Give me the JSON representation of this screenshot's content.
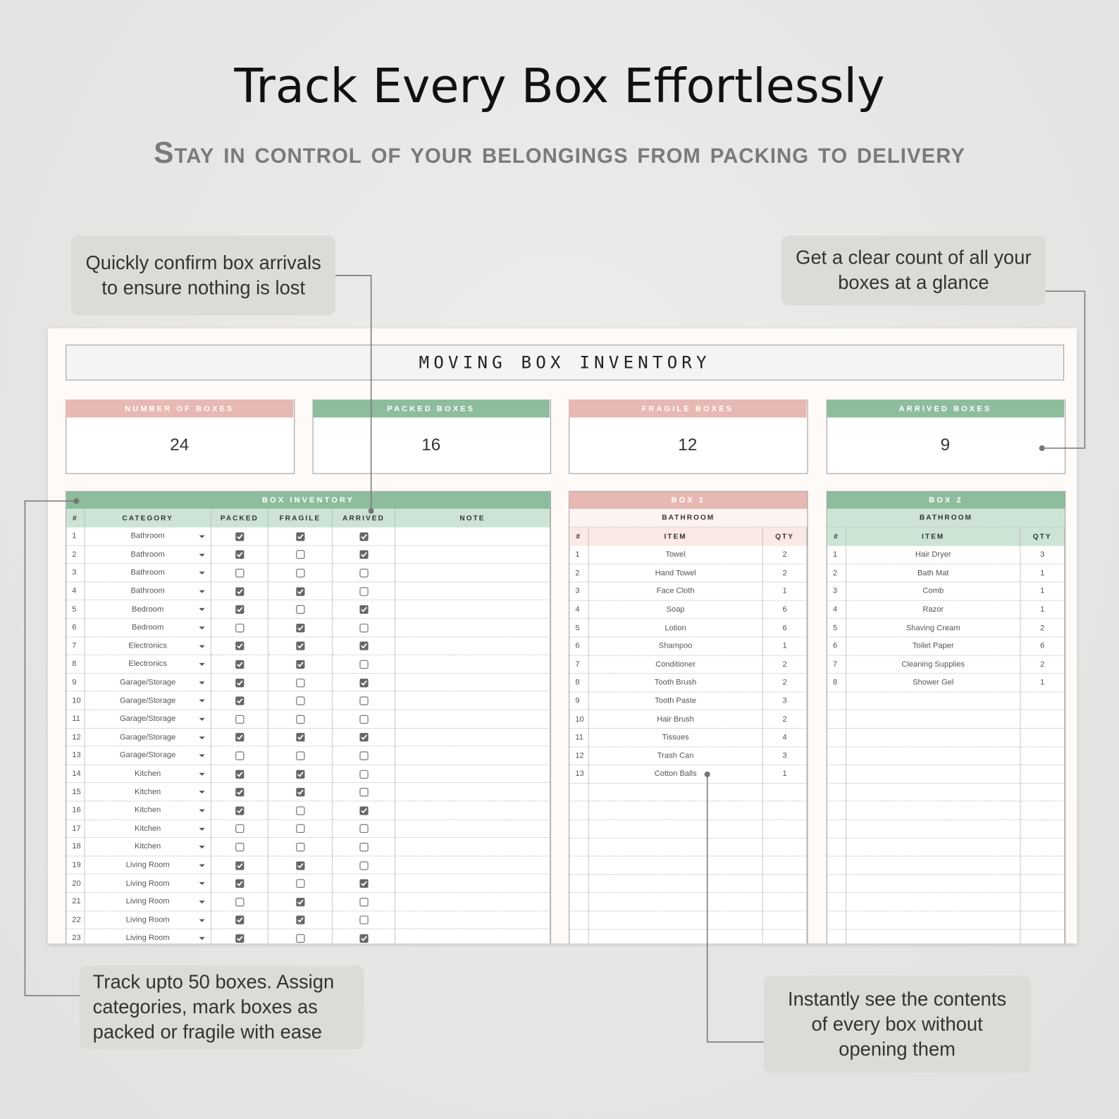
{
  "header": {
    "title": "Track Every Box Effortlessly",
    "subtitle": "Stay in control of your belongings from packing to delivery"
  },
  "callouts": [
    {
      "lines": [
        "Quickly confirm box arrivals",
        "to ensure nothing is lost"
      ]
    },
    {
      "lines": [
        "Get a clear count of all your",
        "boxes at a glance"
      ]
    },
    {
      "lines": [
        "Track upto 50 boxes. Assign",
        "categories, mark boxes as",
        "packed or fragile with ease"
      ]
    },
    {
      "lines": [
        "Instantly see the contents",
        "of every box without",
        "opening them"
      ]
    }
  ],
  "sheet": {
    "title": "MOVING BOX INVENTORY",
    "cards": [
      {
        "label": "NUMBER OF BOXES",
        "value": "24"
      },
      {
        "label": "PACKED BOXES",
        "value": "16"
      },
      {
        "label": "FRAGILE BOXES",
        "value": "12"
      },
      {
        "label": "ARRIVED BOXES",
        "value": "9"
      }
    ],
    "inventory": {
      "title": "BOX INVENTORY",
      "columns": [
        "#",
        "CATEGORY",
        "PACKED",
        "FRAGILE",
        "ARRIVED",
        "NOTE"
      ],
      "rows": [
        [
          1,
          "Bathroom",
          true,
          true,
          true
        ],
        [
          2,
          "Bathroom",
          true,
          false,
          true
        ],
        [
          3,
          "Bathroom",
          false,
          false,
          false
        ],
        [
          4,
          "Bathroom",
          true,
          true,
          false
        ],
        [
          5,
          "Bedroom",
          true,
          false,
          true
        ],
        [
          6,
          "Bedroom",
          false,
          true,
          false
        ],
        [
          7,
          "Electronics",
          true,
          true,
          true
        ],
        [
          8,
          "Electronics",
          true,
          true,
          false
        ],
        [
          9,
          "Garage/Storage",
          true,
          false,
          true
        ],
        [
          10,
          "Garage/Storage",
          true,
          false,
          false
        ],
        [
          11,
          "Garage/Storage",
          false,
          false,
          false
        ],
        [
          12,
          "Garage/Storage",
          true,
          true,
          true
        ],
        [
          13,
          "Garage/Storage",
          false,
          false,
          false
        ],
        [
          14,
          "Kitchen",
          true,
          true,
          false
        ],
        [
          15,
          "Kitchen",
          true,
          true,
          false
        ],
        [
          16,
          "Kitchen",
          true,
          false,
          true
        ],
        [
          17,
          "Kitchen",
          false,
          false,
          false
        ],
        [
          18,
          "Kitchen",
          false,
          false,
          false
        ],
        [
          19,
          "Living Room",
          true,
          true,
          false
        ],
        [
          20,
          "Living Room",
          true,
          false,
          true
        ],
        [
          21,
          "Living Room",
          false,
          true,
          false
        ],
        [
          22,
          "Living Room",
          true,
          true,
          false
        ],
        [
          23,
          "Living Room",
          true,
          false,
          true
        ]
      ]
    },
    "boxes": [
      {
        "title": "BOX 1",
        "room": "BATHROOM",
        "columns": [
          "#",
          "ITEM",
          "QTY"
        ],
        "rows": [
          [
            1,
            "Towel",
            2
          ],
          [
            2,
            "Hand Towel",
            2
          ],
          [
            3,
            "Face Cloth",
            1
          ],
          [
            4,
            "Soap",
            6
          ],
          [
            5,
            "Lotion",
            6
          ],
          [
            6,
            "Shampoo",
            1
          ],
          [
            7,
            "Conditioner",
            2
          ],
          [
            8,
            "Tooth Brush",
            2
          ],
          [
            9,
            "Tooth Paste",
            3
          ],
          [
            10,
            "Hair Brush",
            2
          ],
          [
            11,
            "Tissues",
            4
          ],
          [
            12,
            "Trash Can",
            3
          ],
          [
            13,
            "Cotton Balls",
            1
          ]
        ]
      },
      {
        "title": "BOX 2",
        "room": "BATHROOM",
        "columns": [
          "#",
          "ITEM",
          "QTY"
        ],
        "rows": [
          [
            1,
            "Hair Dryer",
            3
          ],
          [
            2,
            "Bath Mat",
            1
          ],
          [
            3,
            "Comb",
            1
          ],
          [
            4,
            "Razor",
            1
          ],
          [
            5,
            "Shaving Cream",
            2
          ],
          [
            6,
            "Toilet Paper",
            6
          ],
          [
            7,
            "Cleaning Supplies",
            2
          ],
          [
            8,
            "Shower Gel",
            1
          ]
        ]
      }
    ]
  }
}
